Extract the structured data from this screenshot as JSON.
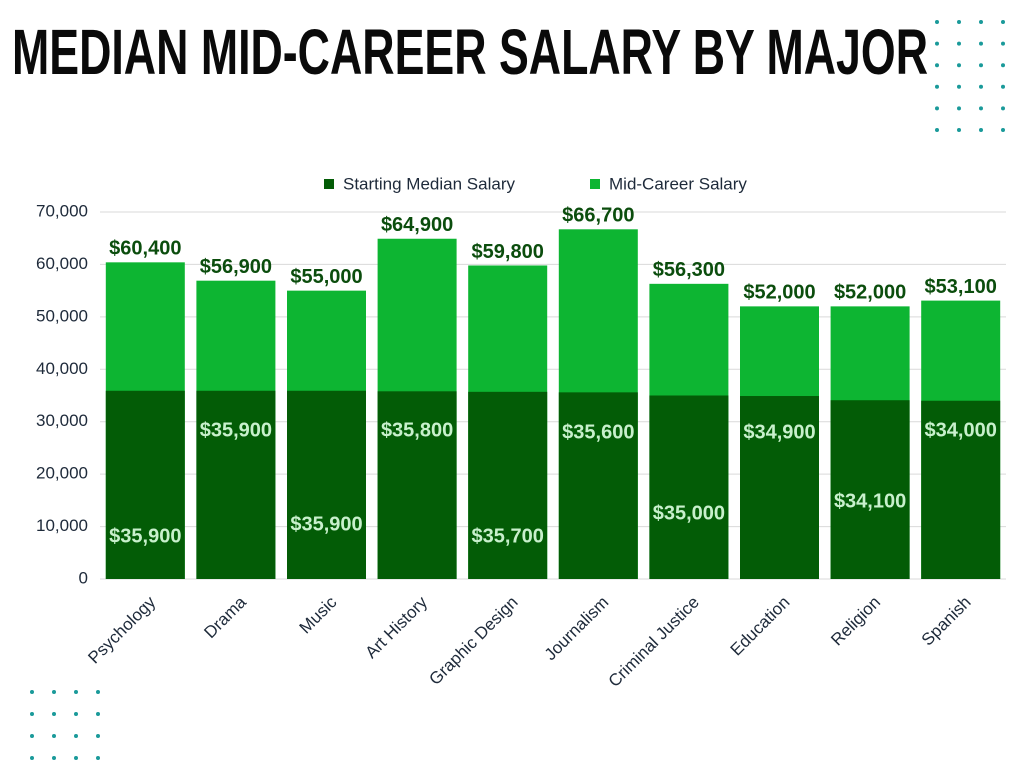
{
  "chart_data": {
    "type": "bar",
    "title": "MEDIAN MID-CAREER SALARY BY MAJOR",
    "categories": [
      "Psychology",
      "Drama",
      "Music",
      "Art History",
      "Graphic Design",
      "Journalism",
      "Criminal Justice",
      "Education",
      "Religion",
      "Spanish"
    ],
    "series": [
      {
        "name": "Starting Median Salary",
        "color": "#035c06",
        "values": [
          35900,
          35900,
          35900,
          35800,
          35700,
          35600,
          35000,
          34900,
          34100,
          34000
        ],
        "value_labels": [
          "$35,900",
          "$35,900",
          "$35,900",
          "$35,800",
          "$35,700",
          "$35,600",
          "$35,000",
          "$34,900",
          "$34,100",
          "$34,000"
        ]
      },
      {
        "name": "Mid-Career Salary",
        "color": "#0db532",
        "values": [
          60400,
          56900,
          55000,
          64900,
          59800,
          66700,
          56300,
          52000,
          52000,
          53100
        ],
        "value_labels": [
          "$60,400",
          "$56,900",
          "$55,000",
          "$64,900",
          "$59,800",
          "$66,700",
          "$56,300",
          "$52,000",
          "$52,000",
          "$53,100"
        ]
      }
    ],
    "ylim": [
      0,
      70000
    ],
    "yticks": [
      0,
      {
        "value": 10000,
        "label": "10,000"
      },
      {
        "value": 20000,
        "label": "20,000"
      },
      {
        "value": 30000,
        "label": "30,000"
      },
      {
        "value": 40000,
        "label": "40,000"
      },
      {
        "value": 50000,
        "label": "50,000"
      },
      {
        "value": 60000,
        "label": "60,000"
      },
      {
        "value": 70000,
        "label": "70,000"
      }
    ],
    "grid": true,
    "legend": "top"
  }
}
